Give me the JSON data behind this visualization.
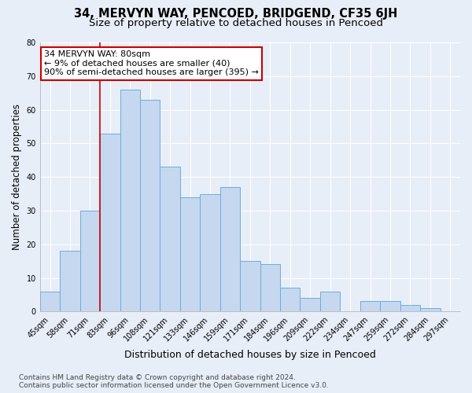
{
  "title": "34, MERVYN WAY, PENCOED, BRIDGEND, CF35 6JH",
  "subtitle": "Size of property relative to detached houses in Pencoed",
  "xlabel": "Distribution of detached houses by size in Pencoed",
  "ylabel": "Number of detached properties",
  "categories": [
    "45sqm",
    "58sqm",
    "71sqm",
    "83sqm",
    "96sqm",
    "108sqm",
    "121sqm",
    "133sqm",
    "146sqm",
    "159sqm",
    "171sqm",
    "184sqm",
    "196sqm",
    "209sqm",
    "222sqm",
    "234sqm",
    "247sqm",
    "259sqm",
    "272sqm",
    "284sqm",
    "297sqm"
  ],
  "values": [
    6,
    18,
    30,
    53,
    66,
    63,
    43,
    34,
    35,
    37,
    15,
    14,
    7,
    4,
    6,
    0,
    3,
    3,
    2,
    1,
    0
  ],
  "bar_color": "#c5d8f0",
  "bar_edge_color": "#6baed6",
  "background_color": "#e8eef8",
  "grid_color": "#ffffff",
  "vline_x_index": 2.5,
  "vline_color": "#cc0000",
  "annotation_line1": "34 MERVYN WAY: 80sqm",
  "annotation_line2": "← 9% of detached houses are smaller (40)",
  "annotation_line3": "90% of semi-detached houses are larger (395) →",
  "annotation_box_color": "#ffffff",
  "annotation_box_edge": "#cc0000",
  "ylim": [
    0,
    80
  ],
  "yticks": [
    0,
    10,
    20,
    30,
    40,
    50,
    60,
    70,
    80
  ],
  "footer_text": "Contains HM Land Registry data © Crown copyright and database right 2024.\nContains public sector information licensed under the Open Government Licence v3.0.",
  "title_fontsize": 10.5,
  "subtitle_fontsize": 9.5,
  "xlabel_fontsize": 9,
  "ylabel_fontsize": 8.5,
  "tick_fontsize": 7,
  "annotation_fontsize": 8,
  "footer_fontsize": 6.5
}
